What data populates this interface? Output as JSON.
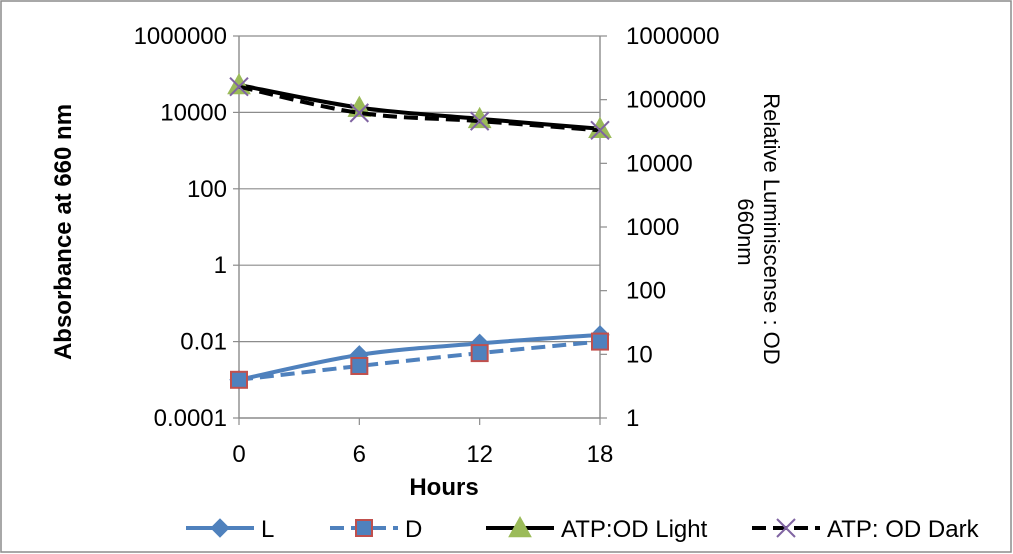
{
  "chart_data": {
    "type": "line",
    "x": [
      0,
      6,
      12,
      18
    ],
    "xlabel": "Hours",
    "ylabel": "Absorbance at 660 nm",
    "y2label": "Relative Luminiscense : OD 660nm",
    "y2label_lines": [
      "Relative Luminiscense : OD",
      "660nm"
    ],
    "xlim": [
      0,
      18
    ],
    "ylim": [
      0.0001,
      1000000
    ],
    "y2lim": [
      1,
      1000000
    ],
    "yscale": "log",
    "y2scale": "log",
    "x_ticks": [
      "0",
      "6",
      "12",
      "18"
    ],
    "y_ticks": [
      "1000000",
      "10000",
      "100",
      "1",
      "0.01",
      "0.0001"
    ],
    "y2_ticks": [
      "1000000",
      "100000",
      "10000",
      "1000",
      "100",
      "10",
      "1"
    ],
    "grid": "horizontal",
    "legend_position": "bottom",
    "series": [
      {
        "name": "L",
        "axis": "left",
        "values": [
          0.001,
          0.0045,
          0.009,
          0.015
        ],
        "color": "#4f81bd",
        "dash": false,
        "marker": "diamond",
        "smooth": true
      },
      {
        "name": "D",
        "axis": "left",
        "values": [
          0.001,
          0.0023,
          0.005,
          0.01
        ],
        "color": "#4f81bd",
        "dash": true,
        "marker": "square",
        "smooth": true
      },
      {
        "name": "ATP:OD Light",
        "axis": "right",
        "values": [
          170000,
          75000,
          50000,
          35000
        ],
        "color": "#000000",
        "dash": false,
        "marker": "triangle",
        "smooth": true
      },
      {
        "name": "ATP: OD Dark",
        "axis": "right",
        "values": [
          160000,
          62000,
          46000,
          33000
        ],
        "color": "#000000",
        "dash": true,
        "marker": "x",
        "smooth": true
      }
    ]
  }
}
